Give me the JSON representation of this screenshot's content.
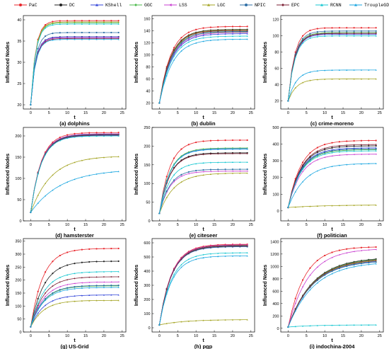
{
  "legend": [
    {
      "label": "PaC",
      "color": "#e8252b",
      "marker": "circle"
    },
    {
      "label": "DC",
      "color": "#222222",
      "marker": "circle"
    },
    {
      "label": "KShell",
      "color": "#3346d9",
      "marker": "triangle"
    },
    {
      "label": "GGC",
      "color": "#4dbb4d",
      "marker": "diamond"
    },
    {
      "label": "LSS",
      "color": "#c93fd0",
      "marker": "triangle-left"
    },
    {
      "label": "LGC",
      "color": "#a3a321",
      "marker": "triangle"
    },
    {
      "label": "NPIC",
      "color": "#2f6fa6",
      "marker": "circle"
    },
    {
      "label": "EPC",
      "color": "#7b1f33",
      "marker": "diamond"
    },
    {
      "label": "RCNN",
      "color": "#18c7d1",
      "marker": "triangle"
    },
    {
      "label": "TroupleGDD",
      "color": "#1aa6e0",
      "marker": "triangle"
    }
  ],
  "chart_data": [
    {
      "type": "line",
      "title": "(a) dolphins",
      "xlabel": "t",
      "ylabel": "Influenced Nodes",
      "xlim": [
        -2,
        26
      ],
      "ylim": [
        19,
        41
      ],
      "xticks": [
        0,
        5,
        10,
        15,
        20,
        25
      ],
      "yticks": [
        20,
        25,
        30,
        35,
        40
      ],
      "series": [
        {
          "name": "PaC",
          "start": 20,
          "final": 39.8,
          "rate": 0.75
        },
        {
          "name": "DC",
          "start": 20,
          "final": 36,
          "rate": 0.75
        },
        {
          "name": "KShell",
          "start": 20,
          "final": 36,
          "rate": 0.75
        },
        {
          "name": "GGC",
          "start": 20,
          "final": 39.3,
          "rate": 0.75
        },
        {
          "name": "LSS",
          "start": 20,
          "final": 35.8,
          "rate": 0.75
        },
        {
          "name": "LGC",
          "start": 20,
          "final": 39.5,
          "rate": 0.75
        },
        {
          "name": "NPIC",
          "start": 20,
          "final": 37,
          "rate": 0.75
        },
        {
          "name": "EPC",
          "start": 20,
          "final": 35.6,
          "rate": 0.75
        },
        {
          "name": "RCNN",
          "start": 20,
          "final": 39.0,
          "rate": 0.75
        },
        {
          "name": "TroupleGDD",
          "start": 20,
          "final": 35.4,
          "rate": 0.75
        }
      ]
    },
    {
      "type": "line",
      "title": "(b) dublin",
      "xlabel": "t",
      "ylabel": "Influenced Nodes",
      "xlim": [
        -2,
        26
      ],
      "ylim": [
        10,
        165
      ],
      "xticks": [
        0,
        5,
        10,
        15,
        20,
        25
      ],
      "yticks": [
        20,
        40,
        60,
        80,
        100,
        120,
        140,
        160
      ],
      "series": [
        {
          "name": "PaC",
          "start": 20,
          "final": 147,
          "rate": 0.32
        },
        {
          "name": "DC",
          "start": 20,
          "final": 142,
          "rate": 0.32
        },
        {
          "name": "KShell",
          "start": 20,
          "final": 135,
          "rate": 0.3
        },
        {
          "name": "GGC",
          "start": 20,
          "final": 138,
          "rate": 0.32
        },
        {
          "name": "LSS",
          "start": 20,
          "final": 137,
          "rate": 0.3
        },
        {
          "name": "LGC",
          "start": 20,
          "final": 141,
          "rate": 0.32
        },
        {
          "name": "NPIC",
          "start": 20,
          "final": 139,
          "rate": 0.3
        },
        {
          "name": "EPC",
          "start": 20,
          "final": 140,
          "rate": 0.32
        },
        {
          "name": "RCNN",
          "start": 20,
          "final": 131,
          "rate": 0.3
        },
        {
          "name": "TroupleGDD",
          "start": 20,
          "final": 126,
          "rate": 0.28
        }
      ]
    },
    {
      "type": "line",
      "title": "(c) crime-moreno",
      "xlabel": "t",
      "ylabel": "Influenced Nodes",
      "xlim": [
        -2,
        26
      ],
      "ylim": [
        10,
        125
      ],
      "xticks": [
        0,
        5,
        10,
        15,
        20,
        25
      ],
      "yticks": [
        20,
        40,
        60,
        80,
        100,
        120
      ],
      "series": [
        {
          "name": "PaC",
          "start": 20,
          "final": 110,
          "rate": 0.55
        },
        {
          "name": "DC",
          "start": 20,
          "final": 104,
          "rate": 0.55
        },
        {
          "name": "KShell",
          "start": 20,
          "final": 102,
          "rate": 0.55
        },
        {
          "name": "GGC",
          "start": 20,
          "final": 104,
          "rate": 0.55
        },
        {
          "name": "LSS",
          "start": 20,
          "final": 103,
          "rate": 0.55
        },
        {
          "name": "LGC",
          "start": 20,
          "final": 47,
          "rate": 0.45
        },
        {
          "name": "NPIC",
          "start": 20,
          "final": 106,
          "rate": 0.55
        },
        {
          "name": "EPC",
          "start": 20,
          "final": 103,
          "rate": 0.55
        },
        {
          "name": "RCNN",
          "start": 20,
          "final": 100,
          "rate": 0.55
        },
        {
          "name": "TroupleGDD",
          "start": 20,
          "final": 58,
          "rate": 0.45
        }
      ]
    },
    {
      "type": "line",
      "title": "(d) hamsterster",
      "xlabel": "t",
      "ylabel": "Influenced Nodes",
      "xlim": [
        -2,
        26
      ],
      "ylim": [
        0,
        220
      ],
      "xticks": [
        0,
        5,
        10,
        15,
        20,
        25
      ],
      "yticks": [
        0,
        50,
        100,
        150,
        200
      ],
      "series": [
        {
          "name": "PaC",
          "start": 20,
          "final": 208,
          "rate": 0.35
        },
        {
          "name": "DC",
          "start": 20,
          "final": 204,
          "rate": 0.35
        },
        {
          "name": "KShell",
          "start": 20,
          "final": 201,
          "rate": 0.35
        },
        {
          "name": "GGC",
          "start": 20,
          "final": 203,
          "rate": 0.35
        },
        {
          "name": "LSS",
          "start": 20,
          "final": 205,
          "rate": 0.35
        },
        {
          "name": "LGC",
          "start": 20,
          "final": 153,
          "rate": 0.18
        },
        {
          "name": "NPIC",
          "start": 20,
          "final": 203,
          "rate": 0.35
        },
        {
          "name": "EPC",
          "start": 20,
          "final": 202,
          "rate": 0.35
        },
        {
          "name": "RCNN",
          "start": 20,
          "final": 200,
          "rate": 0.35
        },
        {
          "name": "TroupleGDD",
          "start": 20,
          "final": 122,
          "rate": 0.12
        }
      ]
    },
    {
      "type": "line",
      "title": "(e) citeseer",
      "xlabel": "t",
      "ylabel": "Influenced Nodes",
      "xlim": [
        -2,
        26
      ],
      "ylim": [
        0,
        250
      ],
      "xticks": [
        0,
        5,
        10,
        15,
        20,
        25
      ],
      "yticks": [
        0,
        50,
        100,
        150,
        200,
        250
      ],
      "series": [
        {
          "name": "PaC",
          "start": 20,
          "final": 216,
          "rate": 0.35
        },
        {
          "name": "DC",
          "start": 20,
          "final": 182,
          "rate": 0.35
        },
        {
          "name": "KShell",
          "start": 20,
          "final": 193,
          "rate": 0.35
        },
        {
          "name": "GGC",
          "start": 20,
          "final": 195,
          "rate": 0.35
        },
        {
          "name": "LSS",
          "start": 20,
          "final": 133,
          "rate": 0.35
        },
        {
          "name": "LGC",
          "start": 20,
          "final": 128,
          "rate": 0.25
        },
        {
          "name": "NPIC",
          "start": 20,
          "final": 138,
          "rate": 0.35
        },
        {
          "name": "EPC",
          "start": 20,
          "final": 180,
          "rate": 0.35
        },
        {
          "name": "RCNN",
          "start": 20,
          "final": 157,
          "rate": 0.35
        },
        {
          "name": "TroupleGDD",
          "start": 20,
          "final": 192,
          "rate": 0.35
        }
      ]
    },
    {
      "type": "line",
      "title": "(f) politician",
      "xlabel": "t",
      "ylabel": "Influenced Nodes",
      "xlim": [
        -2,
        26
      ],
      "ylim": [
        -60,
        500
      ],
      "xticks": [
        0,
        5,
        10,
        15,
        20,
        25
      ],
      "yticks": [
        0,
        100,
        200,
        300,
        400,
        500
      ],
      "series": [
        {
          "name": "PaC",
          "start": 20,
          "final": 422,
          "rate": 0.28
        },
        {
          "name": "DC",
          "start": 20,
          "final": 390,
          "rate": 0.28
        },
        {
          "name": "KShell",
          "start": 20,
          "final": 378,
          "rate": 0.28
        },
        {
          "name": "GGC",
          "start": 20,
          "final": 367,
          "rate": 0.28
        },
        {
          "name": "LSS",
          "start": 20,
          "final": 340,
          "rate": 0.28
        },
        {
          "name": "LGC",
          "start": 20,
          "final": 36,
          "rate": 0.1
        },
        {
          "name": "NPIC",
          "start": 20,
          "final": 372,
          "rate": 0.28
        },
        {
          "name": "EPC",
          "start": 20,
          "final": 398,
          "rate": 0.28
        },
        {
          "name": "RCNN",
          "start": 20,
          "final": 360,
          "rate": 0.28
        },
        {
          "name": "TroupleGDD",
          "start": 20,
          "final": 285,
          "rate": 0.22
        }
      ]
    },
    {
      "type": "line",
      "title": "(g) US-Grid",
      "xlabel": "t",
      "ylabel": "Influenced Nodes",
      "xlim": [
        -2,
        26
      ],
      "ylim": [
        0,
        360
      ],
      "xticks": [
        0,
        5,
        10,
        15,
        20,
        25
      ],
      "yticks": [
        0,
        50,
        100,
        150,
        200,
        250,
        300,
        350
      ],
      "series": [
        {
          "name": "PaC",
          "start": 20,
          "final": 322,
          "rate": 0.3
        },
        {
          "name": "DC",
          "start": 20,
          "final": 273,
          "rate": 0.28
        },
        {
          "name": "KShell",
          "start": 20,
          "final": 143,
          "rate": 0.28
        },
        {
          "name": "GGC",
          "start": 20,
          "final": 178,
          "rate": 0.28
        },
        {
          "name": "LSS",
          "start": 20,
          "final": 193,
          "rate": 0.28
        },
        {
          "name": "LGC",
          "start": 20,
          "final": 122,
          "rate": 0.28
        },
        {
          "name": "NPIC",
          "start": 20,
          "final": 180,
          "rate": 0.28
        },
        {
          "name": "EPC",
          "start": 20,
          "final": 213,
          "rate": 0.28
        },
        {
          "name": "RCNN",
          "start": 20,
          "final": 233,
          "rate": 0.28
        },
        {
          "name": "TroupleGDD",
          "start": 20,
          "final": 172,
          "rate": 0.28
        }
      ]
    },
    {
      "type": "line",
      "title": "(h) pgp",
      "xlabel": "t",
      "ylabel": "Influenced Nodes",
      "xlim": [
        -2,
        26
      ],
      "ylim": [
        -30,
        630
      ],
      "xticks": [
        0,
        5,
        10,
        15,
        20,
        25
      ],
      "yticks": [
        0,
        100,
        200,
        300,
        400,
        500,
        600
      ],
      "series": [
        {
          "name": "PaC",
          "start": 20,
          "final": 590,
          "rate": 0.3
        },
        {
          "name": "DC",
          "start": 20,
          "final": 583,
          "rate": 0.3
        },
        {
          "name": "KShell",
          "start": 20,
          "final": 575,
          "rate": 0.3
        },
        {
          "name": "GGC",
          "start": 20,
          "final": 580,
          "rate": 0.3
        },
        {
          "name": "LSS",
          "start": 20,
          "final": 586,
          "rate": 0.3
        },
        {
          "name": "LGC",
          "start": 20,
          "final": 58,
          "rate": 0.15
        },
        {
          "name": "NPIC",
          "start": 20,
          "final": 573,
          "rate": 0.3
        },
        {
          "name": "EPC",
          "start": 20,
          "final": 578,
          "rate": 0.3
        },
        {
          "name": "RCNN",
          "start": 20,
          "final": 530,
          "rate": 0.3
        },
        {
          "name": "TroupleGDD",
          "start": 20,
          "final": 508,
          "rate": 0.3
        }
      ]
    },
    {
      "type": "line",
      "title": "(i) indochina-2004",
      "xlabel": "t",
      "ylabel": "Influenced Nodes",
      "xlim": [
        -2,
        26
      ],
      "ylim": [
        -60,
        1450
      ],
      "xticks": [
        0,
        5,
        10,
        15,
        20,
        25
      ],
      "yticks": [
        0,
        200,
        400,
        600,
        800,
        1000,
        1200,
        1400
      ],
      "series": [
        {
          "name": "PaC",
          "start": 20,
          "final": 1320,
          "rate": 0.22
        },
        {
          "name": "DC",
          "start": 20,
          "final": 1150,
          "rate": 0.15
        },
        {
          "name": "KShell",
          "start": 20,
          "final": 1110,
          "rate": 0.15
        },
        {
          "name": "GGC",
          "start": 20,
          "final": 1140,
          "rate": 0.15
        },
        {
          "name": "LSS",
          "start": 20,
          "final": 1290,
          "rate": 0.18
        },
        {
          "name": "LGC",
          "start": 20,
          "final": 1120,
          "rate": 0.15
        },
        {
          "name": "NPIC",
          "start": 20,
          "final": 1100,
          "rate": 0.15
        },
        {
          "name": "EPC",
          "start": 20,
          "final": 1130,
          "rate": 0.15
        },
        {
          "name": "RCNN",
          "start": 20,
          "final": 55,
          "rate": 0.15
        },
        {
          "name": "TroupleGDD",
          "start": 20,
          "final": 1080,
          "rate": 0.14
        }
      ]
    }
  ]
}
